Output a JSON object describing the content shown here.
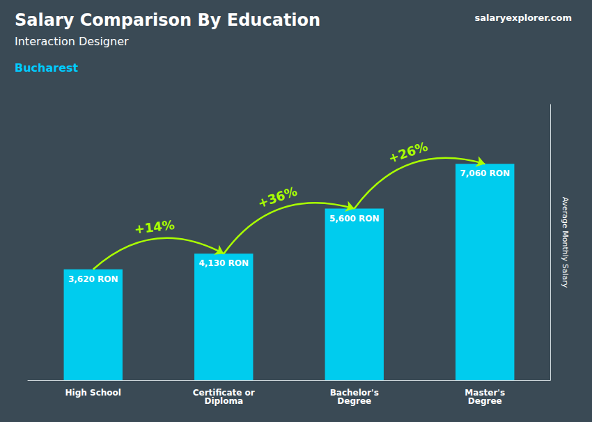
{
  "chart_data": {
    "type": "bar",
    "title": "Salary Comparison By Education",
    "subtitle": "Interaction Designer",
    "categories": [
      "High School",
      "Certificate or\nDiploma",
      "Bachelor's\nDegree",
      "Master's\nDegree"
    ],
    "values": [
      3620,
      4130,
      5600,
      7060
    ],
    "value_labels": [
      "3,620 RON",
      "4,130 RON",
      "5,600 RON",
      "7,060 RON"
    ],
    "data_labels": true,
    "color": "#00ccee",
    "ylabel": "Average Monthly Salary",
    "ylim": [
      0,
      9000
    ],
    "tick_labels": "x",
    "grid": false,
    "annotations": [
      {
        "text": "Bucharest",
        "color": "#00ccff"
      },
      {
        "text": "salaryexplorer.com",
        "color": "#ffffff"
      },
      {
        "text": "+14%",
        "color": "#aaff00"
      },
      {
        "text": "+36%",
        "color": "#aaff00"
      },
      {
        "text": "+26%",
        "color": "#aaff00"
      }
    ]
  }
}
